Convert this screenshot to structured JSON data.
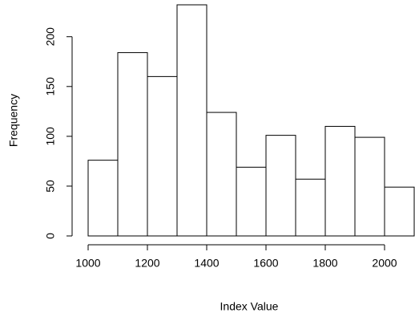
{
  "chart_data": {
    "type": "histogram",
    "xlabel": "Index Value",
    "ylabel": "Frequency",
    "bins": [
      1000,
      1100,
      1200,
      1300,
      1400,
      1500,
      1600,
      1700,
      1800,
      1900,
      2000,
      2100
    ],
    "counts": [
      76,
      184,
      160,
      232,
      124,
      69,
      101,
      57,
      110,
      99,
      49
    ],
    "color": "#ffffff",
    "xlim": [
      1000,
      2100
    ],
    "xticks": [
      1000,
      1200,
      1400,
      1600,
      1800,
      2000
    ],
    "ylim": [
      0,
      232
    ],
    "yticks": [
      0,
      50,
      100,
      150,
      200
    ]
  }
}
